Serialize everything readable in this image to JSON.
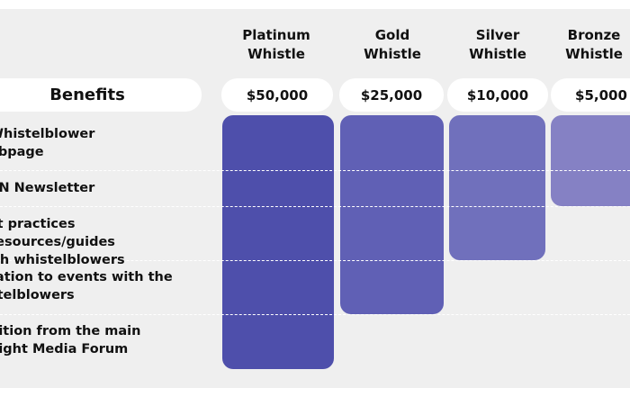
{
  "tiers": [
    {
      "line1": "Platinum",
      "line2": "Whistle",
      "price": "$50,000",
      "color": "#4e4fab",
      "benefits_included": 5
    },
    {
      "line1": "Gold",
      "line2": "Whistle",
      "price": "$25,000",
      "color": "#6060b5",
      "benefits_included": 4
    },
    {
      "line1": "Silver",
      "line2": "Whistle",
      "price": "$10,000",
      "color": "#7070bc",
      "benefits_included": 3
    },
    {
      "line1": "Bronze",
      "line2": "Whistle",
      "price": "$5,000",
      "color": "#8581c4",
      "benefits_included": 2
    }
  ],
  "benefits_header": "Benefits",
  "benefits": [
    {
      "line1": "Whistelblower",
      "line2": "ebpage"
    },
    {
      "line1": "SN Newsletter",
      "line2": ""
    },
    {
      "line1": "st practices resources/guides",
      "line2": "ith whistelblowers"
    },
    {
      "line1": "tation to events with the",
      "line2": "stelblowers"
    },
    {
      "line1": "nition from the main",
      "line2": "night Media Forum"
    }
  ]
}
